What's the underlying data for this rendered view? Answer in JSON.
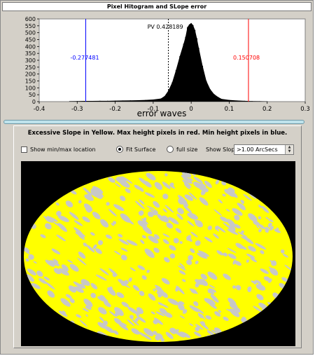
{
  "window": {
    "title": "Pixel Hitogram and SLope error"
  },
  "histogram": {
    "pv_label": "PV 0.428189",
    "min_marker_label": "-0.277481",
    "max_marker_label": "0.150708",
    "colors": {
      "min": "#0000ff",
      "max": "#ff0000",
      "bars": "#000000",
      "pv_line": "#000000"
    },
    "chart_data": {
      "type": "bar",
      "title": "",
      "xlabel": "error waves",
      "ylabel": "",
      "xlim": [
        -0.4,
        0.3
      ],
      "ylim": [
        0,
        600
      ],
      "x_ticks": [
        "-0.4",
        "-0.3",
        "-0.2",
        "-0.1",
        "0",
        "0.1",
        "0.2",
        "0.3"
      ],
      "y_ticks": [
        "0",
        "50",
        "100",
        "150",
        "200",
        "250",
        "300",
        "350",
        "400",
        "450",
        "500",
        "550",
        "600"
      ],
      "x": [
        -0.32,
        -0.3,
        -0.28,
        -0.26,
        -0.24,
        -0.22,
        -0.2,
        -0.18,
        -0.16,
        -0.14,
        -0.12,
        -0.1,
        -0.08,
        -0.07,
        -0.06,
        -0.05,
        -0.04,
        -0.03,
        -0.02,
        -0.015,
        -0.01,
        -0.005,
        0.0,
        0.005,
        0.01,
        0.015,
        0.02,
        0.03,
        0.04,
        0.05,
        0.06,
        0.07,
        0.08,
        0.1,
        0.12,
        0.14,
        0.16,
        0.18,
        0.2
      ],
      "values": [
        3,
        4,
        5,
        5,
        6,
        6,
        7,
        8,
        9,
        10,
        12,
        15,
        22,
        40,
        80,
        140,
        230,
        330,
        420,
        470,
        540,
        560,
        570,
        555,
        520,
        460,
        390,
        260,
        150,
        90,
        55,
        35,
        20,
        12,
        8,
        6,
        4,
        3,
        2
      ],
      "annotations": [
        {
          "label": "PV 0.428189",
          "x": -0.06
        },
        {
          "label": "-0.277481",
          "x": -0.277481
        },
        {
          "label": "0.150708",
          "x": 0.150708
        }
      ]
    }
  },
  "slope_panel": {
    "banner": "Excessive Slope in Yellow. Max height pixels in red. Min height pixels in blue.",
    "show_minmax_label": "Show min/max location",
    "show_minmax_checked": false,
    "fit_surface_label": "Fit Surface",
    "full_size_label": "full size",
    "selected_mode": "Fit Surface",
    "show_slopes_label": "Show Slopes",
    "slope_threshold_value": ">1.00 ArcSecs",
    "colors": {
      "excessive_slope": "#ffff00",
      "ok_slope": "#c8c8c8",
      "background": "#000000"
    }
  }
}
